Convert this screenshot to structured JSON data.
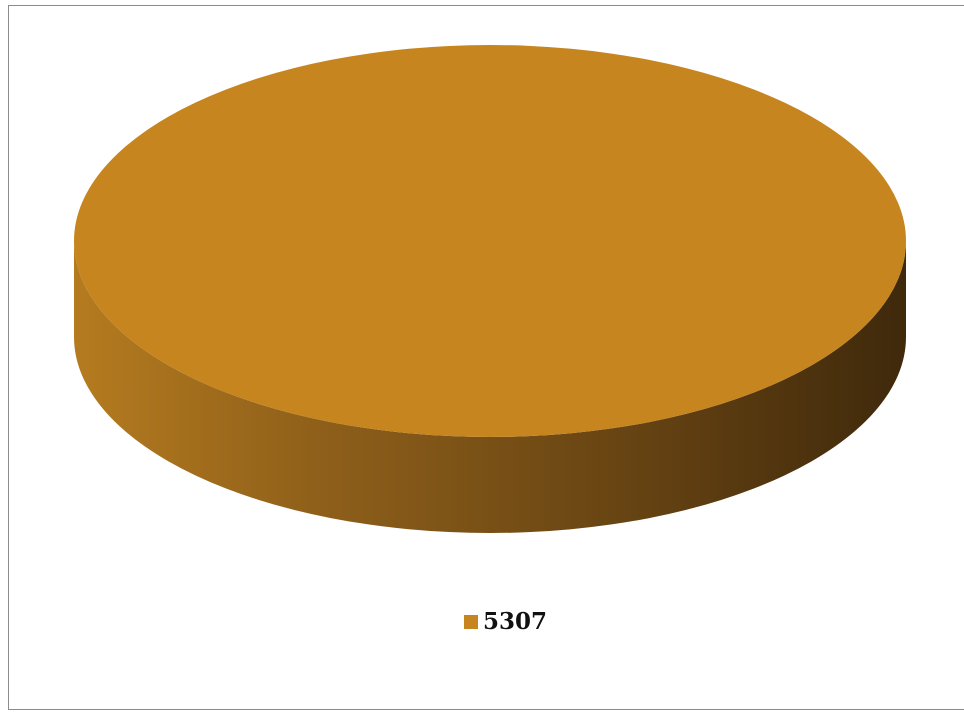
{
  "chart_data": {
    "type": "pie",
    "style": "3d",
    "title": "",
    "categories": [
      "5307"
    ],
    "values": [
      1
    ],
    "colors": [
      "#c6851f"
    ],
    "legend": {
      "position": "bottom",
      "entries": [
        "5307"
      ]
    }
  }
}
